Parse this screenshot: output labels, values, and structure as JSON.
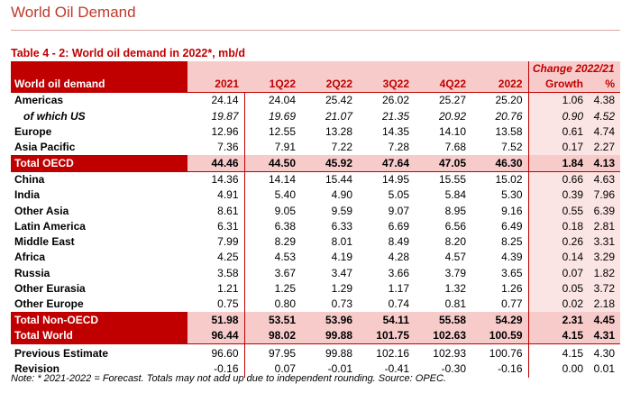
{
  "page_title": "World Oil Demand",
  "table_caption": "Table 4 - 2: World oil demand in 2022*, mb/d",
  "header": {
    "change_label": "Change 2022/21",
    "row_label": "World oil demand",
    "columns": [
      "2021",
      "1Q22",
      "2Q22",
      "3Q22",
      "4Q22",
      "2022",
      "Growth",
      "%"
    ]
  },
  "rows": [
    {
      "label": "Americas",
      "values": [
        "24.14",
        "24.04",
        "25.42",
        "26.02",
        "25.27",
        "25.20",
        "1.06",
        "4.38"
      ]
    },
    {
      "label": "of which US",
      "values": [
        "19.87",
        "19.69",
        "21.07",
        "21.35",
        "20.92",
        "20.76",
        "0.90",
        "4.52"
      ]
    },
    {
      "label": "Europe",
      "values": [
        "12.96",
        "12.55",
        "13.28",
        "14.35",
        "14.10",
        "13.58",
        "0.61",
        "4.74"
      ]
    },
    {
      "label": "Asia Pacific",
      "values": [
        "7.36",
        "7.91",
        "7.22",
        "7.28",
        "7.68",
        "7.52",
        "0.17",
        "2.27"
      ]
    },
    {
      "label": "Total OECD",
      "values": [
        "44.46",
        "44.50",
        "45.92",
        "47.64",
        "47.05",
        "46.30",
        "1.84",
        "4.13"
      ]
    },
    {
      "label": "China",
      "values": [
        "14.36",
        "14.14",
        "15.44",
        "14.95",
        "15.55",
        "15.02",
        "0.66",
        "4.63"
      ]
    },
    {
      "label": "India",
      "values": [
        "4.91",
        "5.40",
        "4.90",
        "5.05",
        "5.84",
        "5.30",
        "0.39",
        "7.96"
      ]
    },
    {
      "label": "Other Asia",
      "values": [
        "8.61",
        "9.05",
        "9.59",
        "9.07",
        "8.95",
        "9.16",
        "0.55",
        "6.39"
      ]
    },
    {
      "label": "Latin America",
      "values": [
        "6.31",
        "6.38",
        "6.33",
        "6.69",
        "6.56",
        "6.49",
        "0.18",
        "2.81"
      ]
    },
    {
      "label": "Middle East",
      "values": [
        "7.99",
        "8.29",
        "8.01",
        "8.49",
        "8.20",
        "8.25",
        "0.26",
        "3.31"
      ]
    },
    {
      "label": "Africa",
      "values": [
        "4.25",
        "4.53",
        "4.19",
        "4.28",
        "4.57",
        "4.39",
        "0.14",
        "3.29"
      ]
    },
    {
      "label": "Russia",
      "values": [
        "3.58",
        "3.67",
        "3.47",
        "3.66",
        "3.79",
        "3.65",
        "0.07",
        "1.82"
      ]
    },
    {
      "label": "Other Eurasia",
      "values": [
        "1.21",
        "1.25",
        "1.29",
        "1.17",
        "1.32",
        "1.26",
        "0.05",
        "3.72"
      ]
    },
    {
      "label": "Other Europe",
      "values": [
        "0.75",
        "0.80",
        "0.73",
        "0.74",
        "0.81",
        "0.77",
        "0.02",
        "2.18"
      ]
    },
    {
      "label": "Total Non-OECD",
      "values": [
        "51.98",
        "53.51",
        "53.96",
        "54.11",
        "55.58",
        "54.29",
        "2.31",
        "4.45"
      ]
    },
    {
      "label": "Total World",
      "values": [
        "96.44",
        "98.02",
        "99.88",
        "101.75",
        "102.63",
        "100.59",
        "4.15",
        "4.31"
      ]
    },
    {
      "label": "Previous Estimate",
      "values": [
        "96.60",
        "97.95",
        "99.88",
        "102.16",
        "102.93",
        "100.76",
        "4.15",
        "4.30"
      ]
    },
    {
      "label": "Revision",
      "values": [
        "-0.16",
        "0.07",
        "-0.01",
        "-0.41",
        "-0.30",
        "-0.16",
        "0.00",
        "0.01"
      ]
    }
  ],
  "note": "Note: * 2021-2022 = Forecast. Totals may not add up due to independent rounding. Source: OPEC.",
  "colors": {
    "accent": "#c00000",
    "header_fill": "#f8cbcb",
    "title": "#c0392b"
  }
}
